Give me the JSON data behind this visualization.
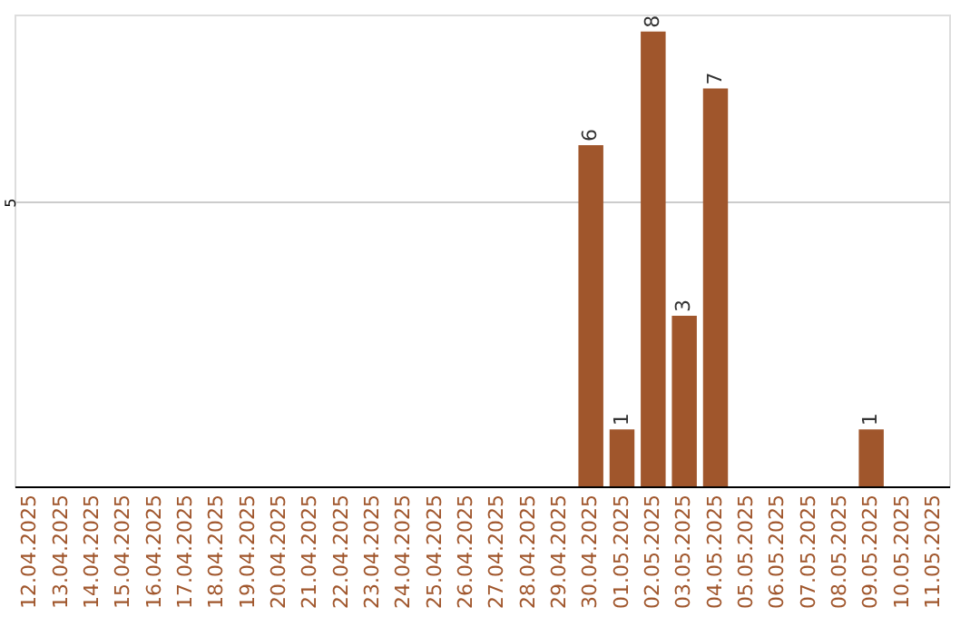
{
  "chart_data": {
    "type": "bar",
    "categories": [
      "12.04.2025",
      "13.04.2025",
      "14.04.2025",
      "15.04.2025",
      "16.04.2025",
      "17.04.2025",
      "18.04.2025",
      "19.04.2025",
      "20.04.2025",
      "21.04.2025",
      "22.04.2025",
      "23.04.2025",
      "24.04.2025",
      "25.04.2025",
      "26.04.2025",
      "27.04.2025",
      "28.04.2025",
      "29.04.2025",
      "30.04.2025",
      "01.05.2025",
      "02.05.2025",
      "03.05.2025",
      "04.05.2025",
      "05.05.2025",
      "06.05.2025",
      "07.05.2025",
      "08.05.2025",
      "09.05.2025",
      "10.05.2025",
      "11.05.2025"
    ],
    "values": [
      null,
      null,
      null,
      null,
      null,
      null,
      null,
      null,
      null,
      null,
      null,
      null,
      null,
      null,
      null,
      null,
      null,
      null,
      6,
      1,
      8,
      3,
      7,
      null,
      null,
      null,
      null,
      1,
      null,
      null
    ],
    "color": "#a0562c",
    "ylim": [
      0,
      8.3
    ],
    "yticks": [
      5
    ],
    "grid": "y",
    "data_labels": true
  }
}
